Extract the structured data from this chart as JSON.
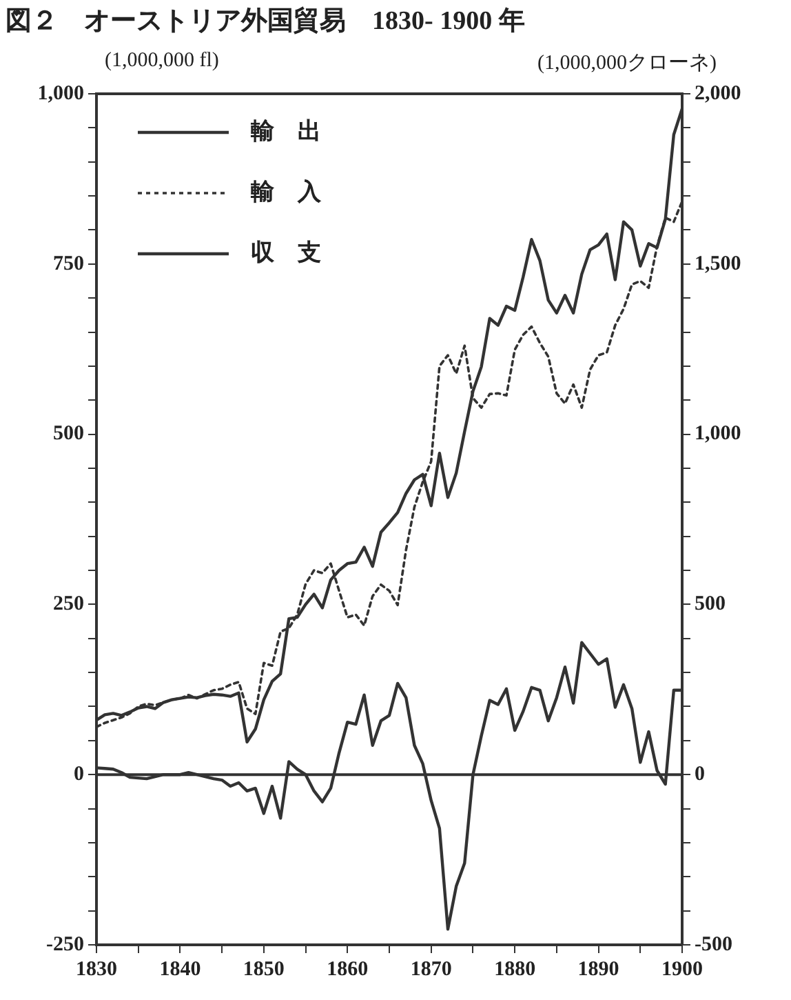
{
  "chart_data": {
    "type": "line",
    "title": "図２　オーストリア外国貿易　1830- 1900 年",
    "ylabel": "(1,000,000 fl)",
    "y2label": "(1,000,000クローネ)",
    "x": [
      1830,
      1831,
      1832,
      1833,
      1834,
      1835,
      1836,
      1837,
      1838,
      1839,
      1840,
      1841,
      1842,
      1843,
      1844,
      1845,
      1846,
      1847,
      1848,
      1849,
      1850,
      1851,
      1852,
      1853,
      1854,
      1855,
      1856,
      1857,
      1858,
      1859,
      1860,
      1861,
      1862,
      1863,
      1864,
      1865,
      1866,
      1867,
      1868,
      1869,
      1870,
      1871,
      1872,
      1873,
      1874,
      1875,
      1876,
      1877,
      1878,
      1879,
      1880,
      1881,
      1882,
      1883,
      1884,
      1885,
      1886,
      1887,
      1888,
      1889,
      1890,
      1891,
      1892,
      1893,
      1894,
      1895,
      1896,
      1897,
      1898,
      1899,
      1900
    ],
    "series": [
      {
        "name": "輸　出",
        "color": "#333333",
        "line_style": "solid",
        "values": [
          80,
          88,
          90,
          87,
          92,
          98,
          100,
          97,
          106,
          110,
          112,
          114,
          113,
          116,
          118,
          117,
          115,
          120,
          48,
          67,
          110,
          137,
          148,
          229,
          231,
          250,
          265,
          245,
          286,
          300,
          310,
          312,
          334,
          306,
          356,
          370,
          385,
          413,
          433,
          441,
          395,
          472,
          407,
          443,
          504,
          563,
          599,
          670,
          660,
          688,
          682,
          731,
          786,
          755,
          697,
          678,
          704,
          678,
          735,
          771,
          778,
          794,
          727,
          812,
          800,
          747,
          780,
          774,
          816,
          940,
          978
        ]
      },
      {
        "name": "輸　入",
        "color": "#333333",
        "line_style": "dotted",
        "values": [
          70,
          76,
          80,
          84,
          90,
          100,
          104,
          102,
          106,
          110,
          112,
          117,
          112,
          118,
          124,
          126,
          132,
          136,
          97,
          89,
          164,
          160,
          210,
          215,
          235,
          280,
          300,
          296,
          310,
          270,
          231,
          235,
          219,
          262,
          279,
          270,
          249,
          330,
          393,
          430,
          460,
          600,
          616,
          589,
          630,
          553,
          539,
          559,
          560,
          557,
          624,
          646,
          658,
          634,
          614,
          560,
          545,
          573,
          539,
          595,
          616,
          620,
          660,
          684,
          720,
          725,
          715,
          776,
          818,
          812,
          842
        ]
      },
      {
        "name": "収　支",
        "color": "#333333",
        "line_style": "solid",
        "values": [
          10,
          9,
          8,
          3,
          -4,
          -5,
          -6,
          -3,
          0,
          0,
          0,
          3,
          0,
          -3,
          -6,
          -8,
          -17,
          -12,
          -24,
          -20,
          -57,
          -17,
          -64,
          19,
          8,
          0,
          -24,
          -40,
          -20,
          32,
          77,
          74,
          117,
          43,
          79,
          87,
          134,
          113,
          43,
          16,
          -38,
          -79,
          -227,
          -164,
          -130,
          0,
          57,
          109,
          103,
          126,
          65,
          93,
          128,
          124,
          79,
          113,
          158,
          105,
          194,
          178,
          162,
          170,
          99,
          132,
          97,
          18,
          63,
          6,
          -14,
          124,
          124
        ]
      }
    ],
    "xlim": [
      1830,
      1900
    ],
    "xticks": [
      1830,
      {
        "value": 1835,
        "label": null
      },
      1840,
      {
        "value": 1845,
        "label": null
      },
      1850,
      {
        "value": 1855,
        "label": null
      },
      1860,
      {
        "value": 1865,
        "label": null
      },
      1870,
      {
        "value": 1875,
        "label": null
      },
      1880,
      {
        "value": 1885,
        "label": null
      },
      1890,
      {
        "value": 1895,
        "label": null
      },
      1900
    ],
    "ylim": [
      -250,
      1000
    ],
    "yticks": [
      -250,
      {
        "value": -200,
        "label": null
      },
      {
        "value": -150,
        "label": null
      },
      {
        "value": -100,
        "label": null
      },
      {
        "value": -50,
        "label": null
      },
      0,
      {
        "value": 50,
        "label": null
      },
      {
        "value": 100,
        "label": null
      },
      {
        "value": 150,
        "label": null
      },
      {
        "value": 200,
        "label": null
      },
      250,
      {
        "value": 300,
        "label": null
      },
      {
        "value": 350,
        "label": null
      },
      {
        "value": 400,
        "label": null
      },
      {
        "value": 450,
        "label": null
      },
      500,
      {
        "value": 550,
        "label": null
      },
      {
        "value": 600,
        "label": null
      },
      {
        "value": 650,
        "label": null
      },
      {
        "value": 700,
        "label": null
      },
      750,
      {
        "value": 800,
        "label": null
      },
      {
        "value": 850,
        "label": null
      },
      {
        "value": 900,
        "label": null
      },
      {
        "value": 950,
        "label": null
      },
      {
        "value": 1000,
        "label": "1,000"
      }
    ],
    "y2lim": [
      -500,
      2000
    ],
    "y2ticks": [
      -500,
      {
        "value": -400,
        "label": null
      },
      {
        "value": -300,
        "label": null
      },
      {
        "value": -200,
        "label": null
      },
      {
        "value": -100,
        "label": null
      },
      0,
      {
        "value": 100,
        "label": null
      },
      {
        "value": 200,
        "label": null
      },
      {
        "value": 300,
        "label": null
      },
      {
        "value": 400,
        "label": null
      },
      500,
      {
        "value": 600,
        "label": null
      },
      {
        "value": 700,
        "label": null
      },
      {
        "value": 800,
        "label": null
      },
      {
        "value": 900,
        "label": null
      },
      {
        "value": 1000,
        "label": "1,000"
      },
      {
        "value": 1100,
        "label": null
      },
      {
        "value": 1200,
        "label": null
      },
      {
        "value": 1300,
        "label": null
      },
      {
        "value": 1400,
        "label": null
      },
      {
        "value": 1500,
        "label": "1,500"
      },
      {
        "value": 1600,
        "label": null
      },
      {
        "value": 1700,
        "label": null
      },
      {
        "value": 1800,
        "label": null
      },
      {
        "value": 1900,
        "label": null
      },
      {
        "value": 2000,
        "label": "2,000"
      }
    ],
    "ref_lines": [
      {
        "axis": "y",
        "value": 0,
        "color": "#333333"
      }
    ],
    "grid": false,
    "legend": "top left",
    "marker": "none"
  }
}
